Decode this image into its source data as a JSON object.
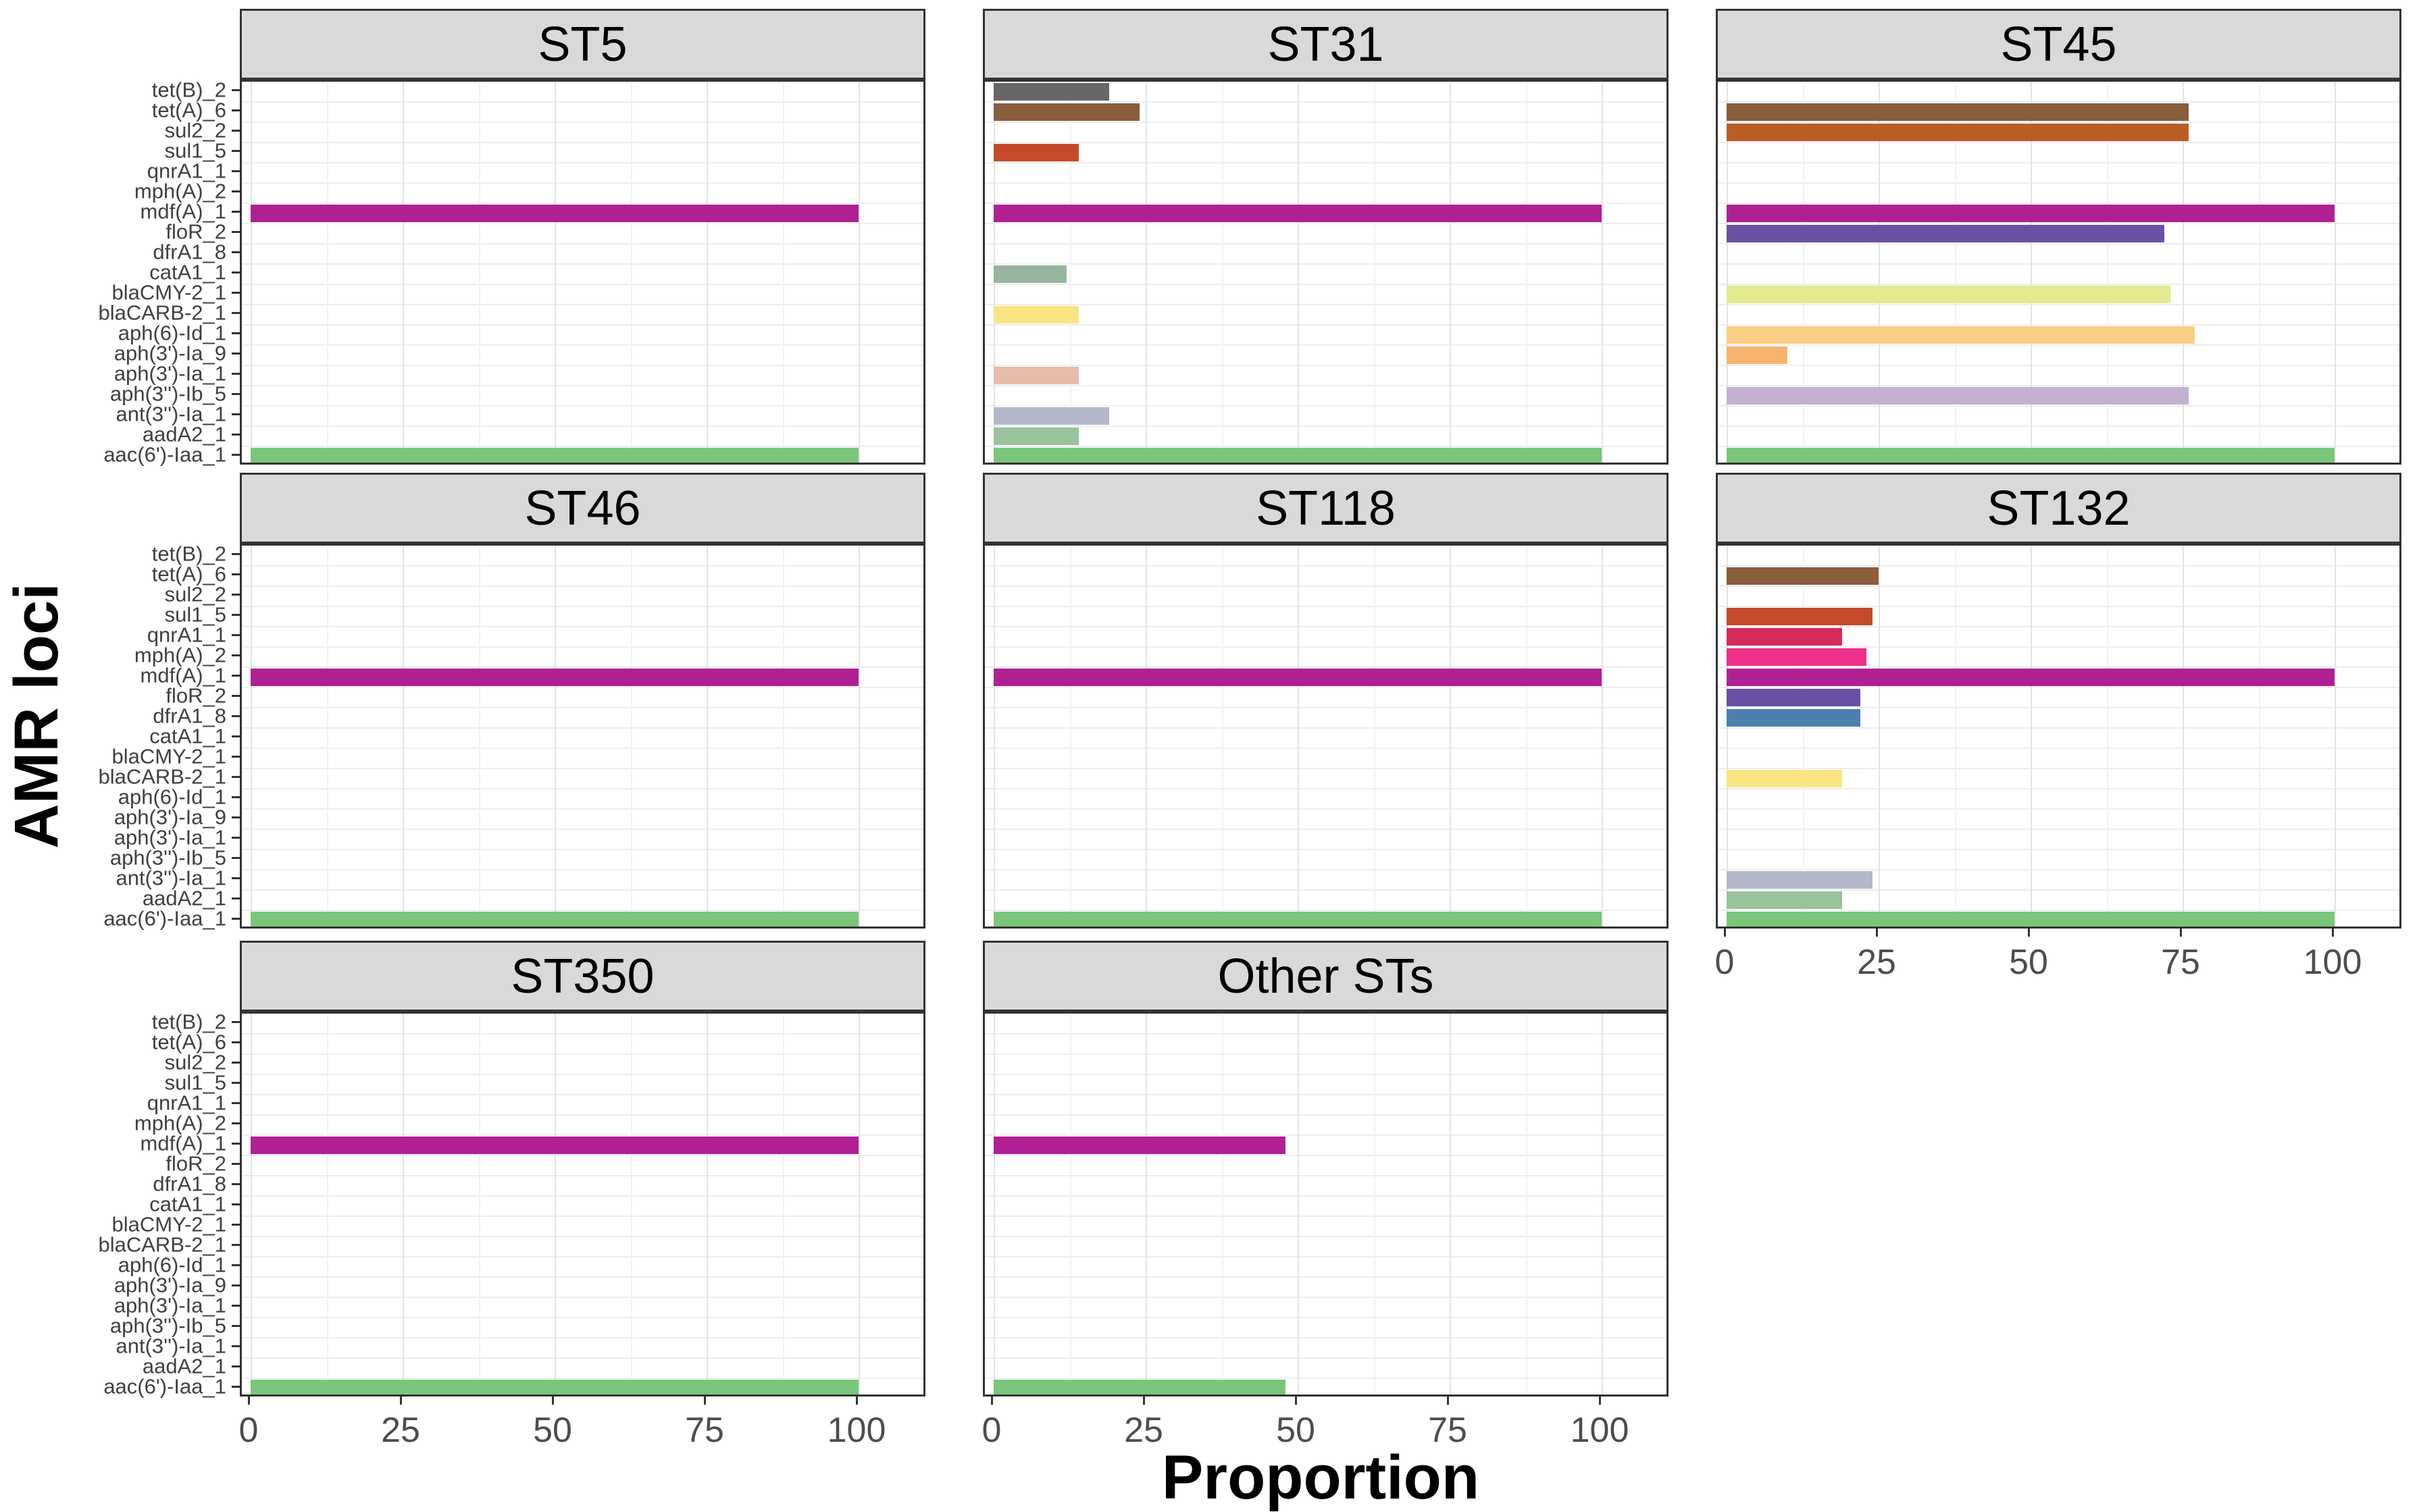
{
  "figure": {
    "ylab": "AMR loci",
    "xlab": "Proportion"
  },
  "chart_data": {
    "type": "bar",
    "orientation": "horizontal",
    "title": "",
    "xlabel": "Proportion",
    "ylabel": "AMR loci",
    "xlim": [
      0,
      111
    ],
    "x_ticks": [
      0,
      25,
      50,
      75,
      100
    ],
    "grid": "on",
    "legend": "none",
    "categories_top_to_bottom": [
      "tet(B)_2",
      "tet(A)_6",
      "sul2_2",
      "sul1_5",
      "qnrA1_1",
      "mph(A)_2",
      "mdf(A)_1",
      "floR_2",
      "dfrA1_8",
      "catA1_1",
      "blaCMY-2_1",
      "blaCARB-2_1",
      "aph(6)-Id_1",
      "aph(3')-Ia_9",
      "aph(3')-Ia_1",
      "aph(3'')-Ib_5",
      "ant(3'')-Ia_1",
      "aadA2_1",
      "aac(6')-Iaa_1"
    ],
    "colors": {
      "tet(B)_2": "#666666",
      "tet(A)_6": "#8A5D3D",
      "sul2_2": "#BA5E26",
      "sul1_5": "#C54A2B",
      "qnrA1_1": "#D62B5B",
      "mph(A)_2": "#ED3088",
      "mdf(A)_1": "#B02092",
      "floR_2": "#6950A3",
      "dfrA1_8": "#4C7FAF",
      "catA1_1": "#97B49C",
      "blaCMY-2_1": "#E2E98F",
      "blaCARB-2_1": "#FAE383",
      "aph(6)-Id_1": "#FBCE85",
      "aph(3')-Ia_9": "#F7B46F",
      "aph(3')-Ia_1": "#E7BCA9",
      "aph(3'')-Ib_5": "#C5AFD0",
      "ant(3'')-Ia_1": "#B4B8C9",
      "aadA2_1": "#9AC29D",
      "aac(6')-Iaa_1": "#79C67B"
    },
    "facets": [
      {
        "title": "ST5",
        "grid_col": 0,
        "grid_row": 0,
        "values": {
          "mdf(A)_1": 100,
          "aac(6')-Iaa_1": 100
        }
      },
      {
        "title": "ST31",
        "grid_col": 1,
        "grid_row": 0,
        "values": {
          "tet(B)_2": 19,
          "tet(A)_6": 24,
          "sul1_5": 14,
          "mdf(A)_1": 100,
          "catA1_1": 12,
          "blaCARB-2_1": 14,
          "aph(3')-Ia_1": 14,
          "ant(3'')-Ia_1": 19,
          "aadA2_1": 14,
          "aac(6')-Iaa_1": 100
        }
      },
      {
        "title": "ST45",
        "grid_col": 2,
        "grid_row": 0,
        "values": {
          "tet(A)_6": 76,
          "sul2_2": 76,
          "mdf(A)_1": 100,
          "floR_2": 72,
          "blaCMY-2_1": 73,
          "aph(6)-Id_1": 77,
          "aph(3')-Ia_9": 10,
          "aph(3'')-Ib_5": 76,
          "aac(6')-Iaa_1": 100
        }
      },
      {
        "title": "ST46",
        "grid_col": 0,
        "grid_row": 1,
        "values": {
          "mdf(A)_1": 100,
          "aac(6')-Iaa_1": 100
        }
      },
      {
        "title": "ST118",
        "grid_col": 1,
        "grid_row": 1,
        "values": {
          "mdf(A)_1": 100,
          "aac(6')-Iaa_1": 100
        }
      },
      {
        "title": "ST132",
        "grid_col": 2,
        "grid_row": 1,
        "values": {
          "tet(A)_6": 25,
          "sul1_5": 24,
          "qnrA1_1": 19,
          "mph(A)_2": 23,
          "mdf(A)_1": 100,
          "floR_2": 22,
          "dfrA1_8": 22,
          "blaCARB-2_1": 19,
          "ant(3'')-Ia_1": 24,
          "aadA2_1": 19,
          "aac(6')-Iaa_1": 100
        }
      },
      {
        "title": "ST350",
        "grid_col": 0,
        "grid_row": 2,
        "values": {
          "mdf(A)_1": 100,
          "aac(6')-Iaa_1": 100
        }
      },
      {
        "title": "Other STs",
        "grid_col": 1,
        "grid_row": 2,
        "values": {
          "mdf(A)_1": 48,
          "aac(6')-Iaa_1": 48
        }
      }
    ]
  }
}
